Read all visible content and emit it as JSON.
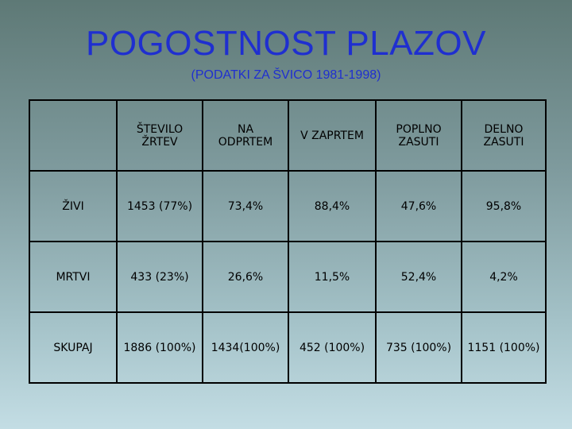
{
  "slide": {
    "title": "POGOSTNOST PLAZOV",
    "subtitle": "(PODATKI ZA ŠVICO 1981-1998)"
  },
  "table": {
    "headers": [
      "",
      "ŠTEVILO\nŽRTEV",
      "NA\nODPRTEM",
      "V ZAPRTEM",
      "POPLNO\nZASUTI",
      "DELNO\nZASUTI"
    ],
    "rows": [
      [
        "ŽIVI",
        "1453 (77%)",
        "73,4%",
        "88,4%",
        "47,6%",
        "95,8%"
      ],
      [
        "MRTVI",
        "433 (23%)",
        "26,6%",
        "11,5%",
        "52,4%",
        "4,2%"
      ],
      [
        "SKUPAJ",
        "1886 (100%)",
        "1434(100%)",
        "452 (100%)",
        "735 (100%)",
        "1151 (100%)"
      ]
    ]
  },
  "colors": {
    "title": "#1f2fd0",
    "background_top": "#5e7976",
    "background_bottom": "#c3dde4"
  }
}
